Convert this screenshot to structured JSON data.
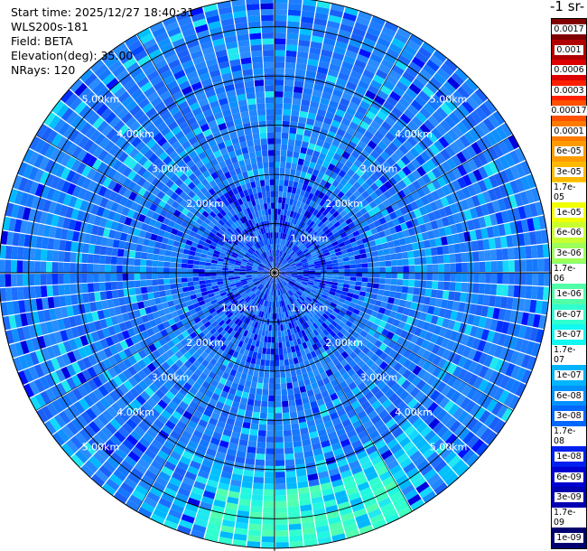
{
  "info": {
    "start_time": "Start time: 2025/12/27 18:40:31",
    "device": "WLS200s-181",
    "field": "Field: BETA",
    "elevation": "Elevation(deg): 35.00",
    "nrays": "NRays: 120"
  },
  "colorbar": {
    "title_fragment": "-1 sr-",
    "labels": [
      "0.0017",
      "0.001",
      "0.0006",
      "0.0003",
      "0.00017",
      "0.0001",
      "6e-05",
      "3e-05",
      "1.7e-05",
      "1e-05",
      "6e-06",
      "3e-06",
      "1.7e-06",
      "1e-06",
      "6e-07",
      "3e-07",
      "1.7e-07",
      "1e-07",
      "6e-08",
      "3e-08",
      "1.7e-08",
      "1e-08",
      "6e-09",
      "3e-09",
      "1.7e-09",
      "1e-09"
    ],
    "colors": [
      "#800000",
      "#b00000",
      "#dc0000",
      "#ff2000",
      "#ff5000",
      "#ff7a00",
      "#ff9a00",
      "#ffb800",
      "#ffd800",
      "#f0ff00",
      "#c8ff2e",
      "#9cff5a",
      "#78ff80",
      "#50ffa8",
      "#30ffd0",
      "#10f8f0",
      "#00d8ff",
      "#00b4ff",
      "#0090ff",
      "#0068ff",
      "#0040ff",
      "#0020f0",
      "#0000d0",
      "#0000b0",
      "#000090",
      "#000070"
    ]
  },
  "chart_data": {
    "type": "heatmap",
    "projection": "polar (PPI scan)",
    "field": "BETA",
    "elevation_deg": 35.0,
    "n_rays": 120,
    "range_rings_km": [
      1,
      2,
      3,
      4,
      5
    ],
    "ring_labels": [
      "1.00km",
      "2.00km",
      "3.00km",
      "4.00km",
      "5.00km"
    ],
    "max_range_km": 5.6,
    "value_summary": "Mostly 1e-08 to 6e-08 (blue) across all ranges; darker blue (3e-09 to 1e-08) near the center; an enhanced band of 1.7e-07 to 1e-06 (cyan to light green) along the outer edge toward the south-southeast.",
    "color_scale": "log, 1e-09 to 0.0017"
  }
}
